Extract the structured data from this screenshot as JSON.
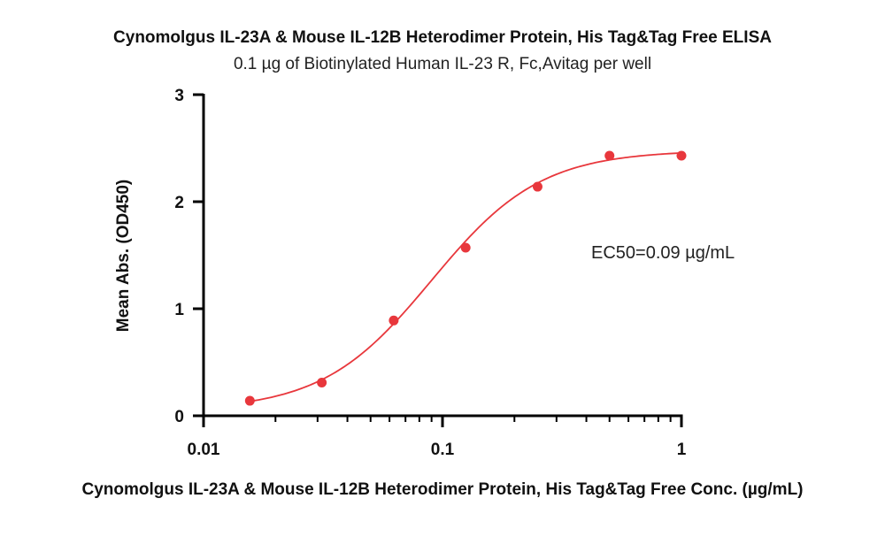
{
  "chart_data": {
    "type": "scatter",
    "title": "Cynomolgus IL-23A & Mouse IL-12B Heterodimer Protein, His Tag&Tag Free ELISA",
    "subtitle": "0.1 µg of Biotinylated Human IL-23 R, Fc,Avitag per well",
    "xlabel": "Cynomolgus IL-23A & Mouse IL-12B Heterodimer Protein, His Tag&Tag Free Conc. (µg/mL)",
    "ylabel": "Mean Abs. (OD450)",
    "xscale": "log",
    "xlim": [
      0.01,
      1
    ],
    "ylim": [
      0,
      3
    ],
    "xticks": [
      0.01,
      0.1,
      1
    ],
    "xtick_labels": [
      "0.01",
      "0.1",
      "1"
    ],
    "yticks": [
      0,
      1,
      2,
      3
    ],
    "ytick_labels": [
      "0",
      "1",
      "2",
      "3"
    ],
    "grid": false,
    "series": [
      {
        "color": "#e8373c",
        "x": [
          0.015625,
          0.03125,
          0.0625,
          0.125,
          0.25,
          0.5,
          1
        ],
        "y": [
          0.14,
          0.31,
          0.89,
          1.57,
          2.14,
          2.43,
          2.43
        ]
      }
    ],
    "fit_curve": {
      "model": "4PL",
      "bottom": 0.05,
      "top": 2.48,
      "ec50": 0.09,
      "hill": 1.9,
      "color": "#e8373c"
    },
    "annotations": [
      "EC50=0.09 µg/mL"
    ]
  }
}
